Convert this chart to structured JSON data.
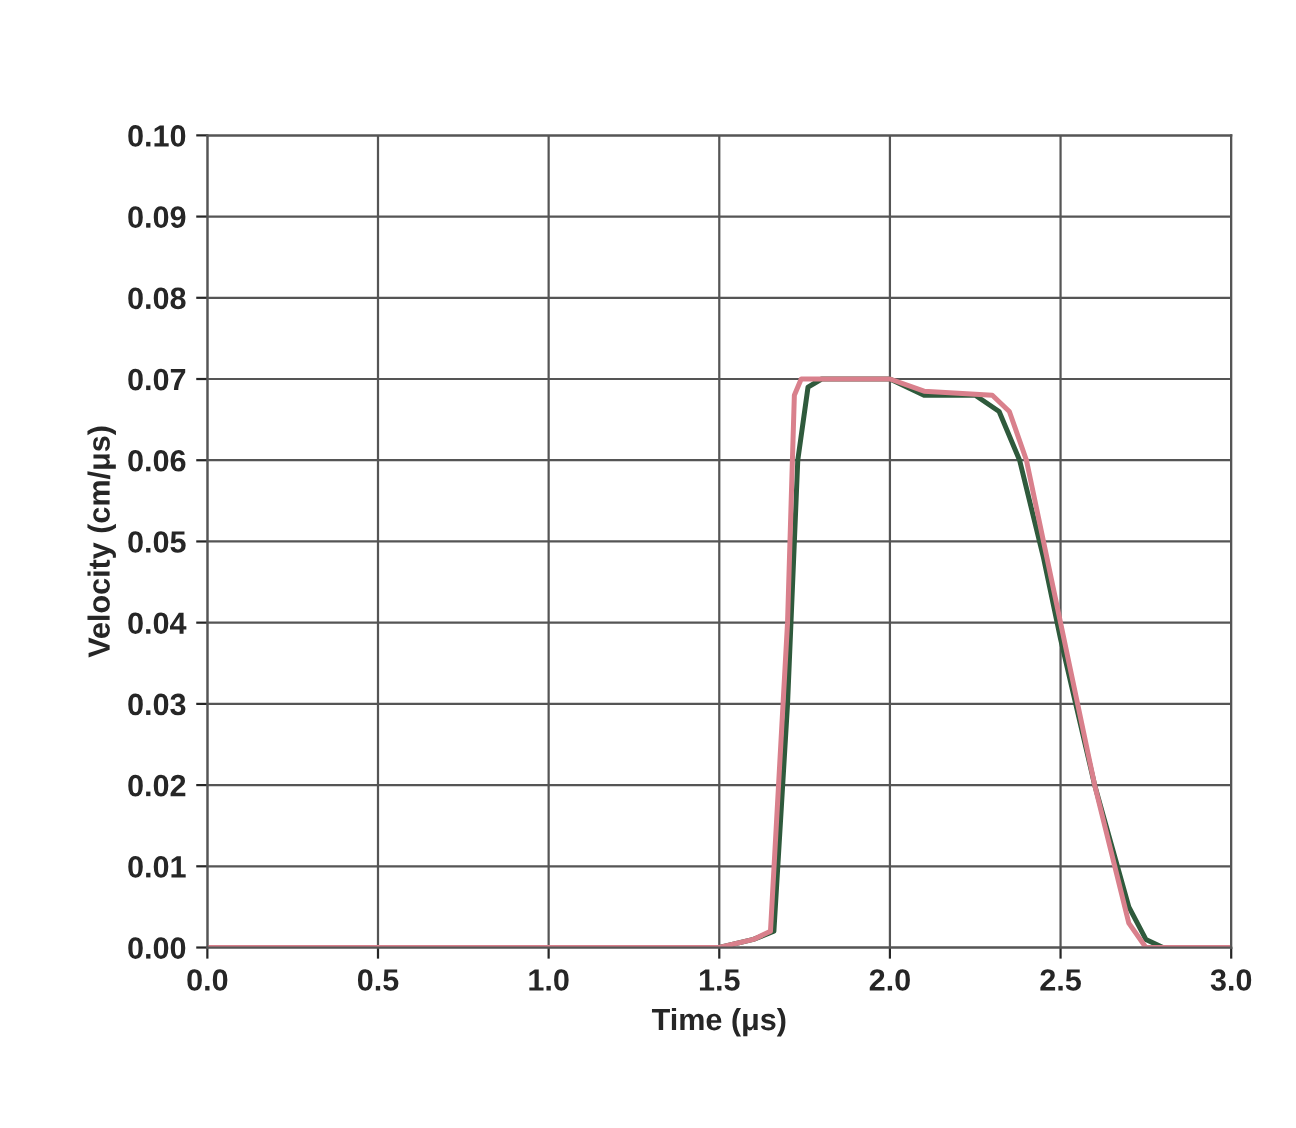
{
  "chart_data": {
    "type": "line",
    "xlabel": "Time (μs)",
    "ylabel": "Velocity (cm/μs)",
    "xlim": [
      0,
      3.0
    ],
    "xticks": [
      {
        "value": 0,
        "label": "0.0"
      },
      0.5,
      {
        "value": 1,
        "label": "1.0"
      },
      1.5,
      {
        "value": 2,
        "label": "2.0"
      },
      2.5,
      {
        "value": 3,
        "label": "3.0"
      }
    ],
    "ylim": [
      0,
      0.1
    ],
    "yticks": [
      {
        "value": 0,
        "label": "0.00"
      },
      {
        "value": 0.01,
        "label": "0.01"
      },
      {
        "value": 0.02,
        "label": "0.02"
      },
      {
        "value": 0.03,
        "label": "0.03"
      },
      {
        "value": 0.04,
        "label": "0.04"
      },
      {
        "value": 0.05,
        "label": "0.05"
      },
      {
        "value": 0.06,
        "label": "0.06"
      },
      {
        "value": 0.07,
        "label": "0.07"
      },
      {
        "value": 0.08,
        "label": "0.08"
      },
      {
        "value": 0.09,
        "label": "0.09"
      },
      {
        "value": 0.1,
        "label": "0.10"
      }
    ],
    "grid": true,
    "marker": "none",
    "line_style": "solid",
    "series": [
      {
        "color": "#2f5a3c",
        "x": [
          0,
          1.0,
          1.5,
          1.6,
          1.66,
          1.7,
          1.73,
          1.76,
          1.8,
          2.0,
          2.1,
          2.25,
          2.32,
          2.38,
          2.45,
          2.5,
          2.6,
          2.7,
          2.75,
          2.8,
          3.0
        ],
        "values": [
          0,
          0,
          0,
          0.001,
          0.002,
          0.03,
          0.06,
          0.069,
          0.07,
          0.07,
          0.068,
          0.068,
          0.066,
          0.06,
          0.048,
          0.038,
          0.02,
          0.005,
          0.001,
          0,
          0
        ]
      },
      {
        "color": "#d9808c",
        "x": [
          0,
          1.0,
          1.5,
          1.6,
          1.65,
          1.7,
          1.72,
          1.74,
          2.0,
          2.1,
          2.3,
          2.35,
          2.4,
          2.5,
          2.6,
          2.7,
          2.75,
          3.0
        ],
        "values": [
          0,
          0,
          0,
          0.001,
          0.002,
          0.04,
          0.068,
          0.07,
          0.07,
          0.0685,
          0.068,
          0.066,
          0.06,
          0.04,
          0.02,
          0.003,
          0,
          0
        ]
      }
    ]
  }
}
